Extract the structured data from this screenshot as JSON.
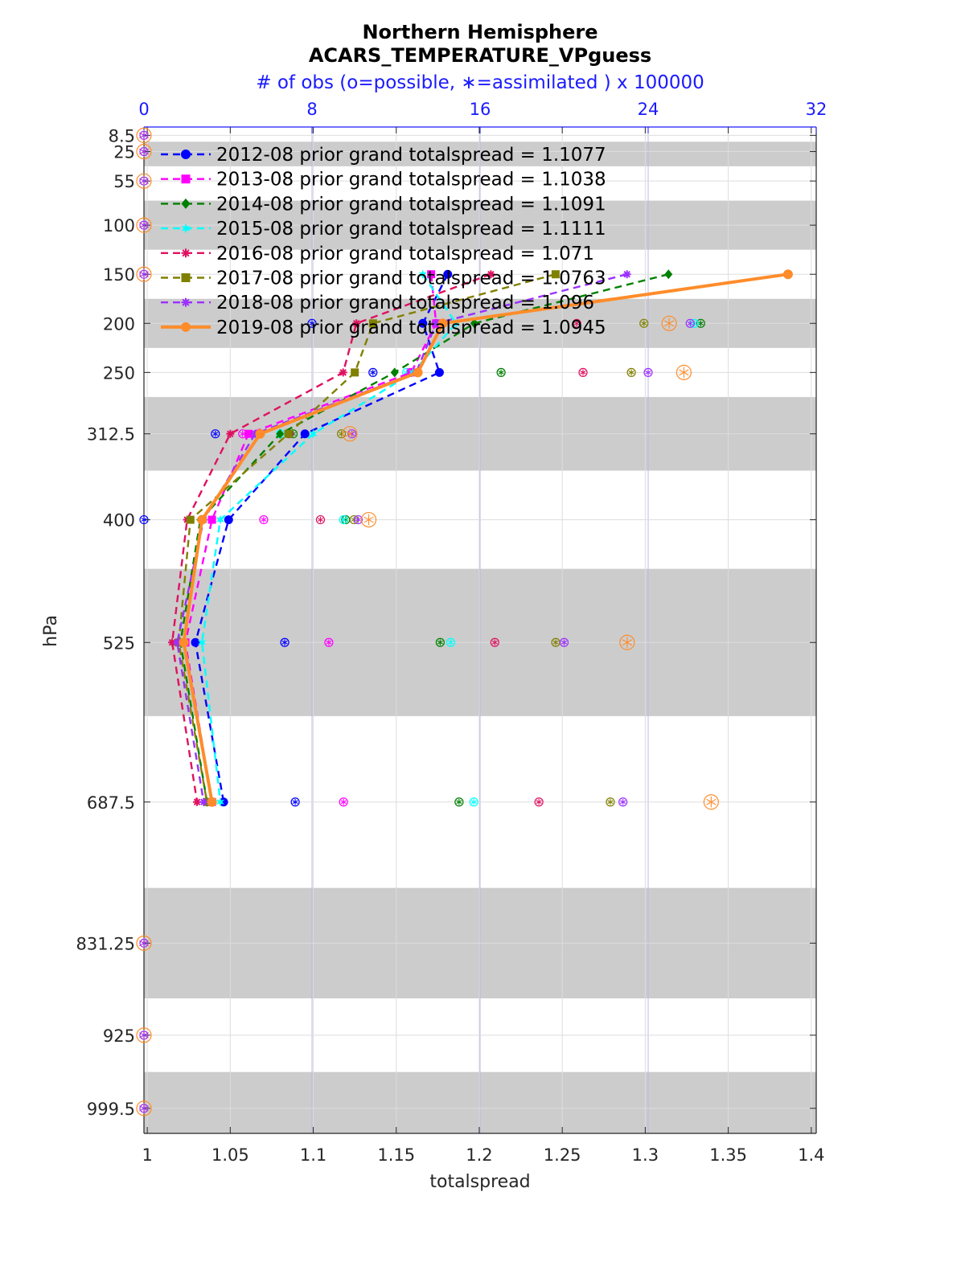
{
  "chart_data": {
    "type": "line",
    "title": "Northern Hemisphere",
    "subtitle": "ACARS_TEMPERATURE_VPguess",
    "top_axis_label": "# of obs (o=possible, ∗=assimilated ) x 100000",
    "xlabel": "totalspread",
    "ylabel": "hPa",
    "xlim": [
      0.998,
      1.403
    ],
    "x_ticks": [
      "1",
      "1.05",
      "1.1",
      "1.15",
      "1.2",
      "1.25",
      "1.3",
      "1.35",
      "1.4"
    ],
    "x_tick_values": [
      1.0,
      1.05,
      1.1,
      1.15,
      1.2,
      1.25,
      1.3,
      1.35,
      1.4
    ],
    "top_xlim": [
      0,
      32
    ],
    "top_ticks": [
      "0",
      "8",
      "16",
      "24",
      "32"
    ],
    "top_tick_values": [
      0,
      8,
      16,
      24,
      32
    ],
    "pressure_levels": [
      "8.5",
      "25",
      "55",
      "100",
      "150",
      "200",
      "250",
      "312.5",
      "400",
      "525",
      "687.5",
      "831.25",
      "925",
      "999.5"
    ],
    "pressure_values": [
      8.5,
      25,
      55,
      100,
      150,
      200,
      250,
      312.5,
      400,
      525,
      687.5,
      831.25,
      925,
      999.5
    ],
    "ylim": [
      0,
      1025
    ],
    "shaded_bands": [
      [
        15,
        40
      ],
      [
        75,
        125
      ],
      [
        175,
        225
      ],
      [
        275,
        350
      ],
      [
        450,
        600
      ],
      [
        775,
        887.5
      ],
      [
        962.5,
        1025
      ]
    ],
    "grid": true,
    "legend_position": "top-left",
    "series": [
      {
        "name": "2012-08 prior grand totalspread = 1.1077",
        "color": "#0000ff",
        "marker": "circle",
        "linestyle": "dashed",
        "levels": [
          150,
          200,
          250,
          312.5,
          400,
          525,
          687.5
        ],
        "values": [
          1.181,
          1.166,
          1.176,
          1.095,
          1.049,
          1.029,
          1.046
        ],
        "obs_levels": [
          200,
          250,
          312.5,
          400,
          525,
          687.5
        ],
        "obs_possible": [
          8.0,
          10.9,
          3.4,
          0,
          6.7,
          7.2
        ],
        "obs_assimilated": [
          8.0,
          10.9,
          3.4,
          0,
          6.7,
          7.2
        ]
      },
      {
        "name": "2013-08 prior grand totalspread = 1.1038",
        "color": "#ff00ff",
        "marker": "square",
        "linestyle": "dashed",
        "levels": [
          150,
          200,
          250,
          312.5,
          400,
          525,
          687.5
        ],
        "values": [
          1.171,
          1.174,
          1.159,
          1.061,
          1.039,
          1.023,
          1.039
        ],
        "obs_levels": [
          200,
          250,
          312.5,
          400,
          525,
          687.5
        ],
        "obs_possible": [
          13.9,
          12.7,
          4.7,
          5.7,
          8.8,
          9.5
        ],
        "obs_assimilated": [
          13.9,
          12.7,
          4.7,
          5.7,
          8.8,
          9.5
        ]
      },
      {
        "name": "2014-08 prior grand totalspread = 1.1091",
        "color": "#008000",
        "marker": "diamond",
        "linestyle": "dashed",
        "levels": [
          150,
          200,
          250,
          312.5,
          400,
          525,
          687.5
        ],
        "values": [
          1.314,
          1.197,
          1.149,
          1.08,
          1.032,
          1.02,
          1.036
        ],
        "obs_levels": [
          200,
          250,
          312.5,
          400,
          525,
          687.5
        ],
        "obs_possible": [
          26.5,
          17.0,
          7.1,
          9.6,
          14.1,
          15.0
        ],
        "obs_assimilated": [
          26.5,
          17.0,
          7.1,
          9.6,
          14.1,
          15.0
        ]
      },
      {
        "name": "2015-08 prior grand totalspread = 1.1111",
        "color": "#00ffff",
        "marker": "hexagram",
        "linestyle": "dashed",
        "levels": [
          150,
          200,
          250,
          312.5,
          400,
          525,
          687.5
        ],
        "values": [
          1.166,
          1.186,
          1.16,
          1.1,
          1.044,
          1.033,
          1.044
        ],
        "obs_levels": [
          200,
          250,
          312.5,
          400,
          525,
          687.5
        ],
        "obs_possible": [
          26.2,
          12.5,
          6.5,
          9.5,
          14.6,
          15.7
        ],
        "obs_assimilated": [
          26.2,
          12.5,
          6.5,
          9.5,
          14.6,
          15.7
        ]
      },
      {
        "name": "2016-08 prior grand totalspread = 1.071",
        "color": "#e0115f",
        "marker": "asterisk",
        "linestyle": "dashed",
        "levels": [
          150,
          200,
          250,
          312.5,
          400,
          525,
          687.5
        ],
        "values": [
          1.207,
          1.126,
          1.118,
          1.05,
          1.024,
          1.015,
          1.03
        ],
        "obs_levels": [
          200,
          250,
          312.5,
          400,
          525,
          687.5
        ],
        "obs_possible": [
          20.6,
          20.9,
          6.9,
          8.4,
          16.7,
          18.8
        ],
        "obs_assimilated": [
          20.6,
          20.9,
          6.9,
          8.4,
          16.7,
          18.8
        ]
      },
      {
        "name": "2017-08 prior grand totalspread = 1.0763",
        "color": "#808000",
        "marker": "square",
        "linestyle": "dashed",
        "levels": [
          150,
          200,
          250,
          312.5,
          400,
          525,
          687.5
        ],
        "values": [
          1.246,
          1.136,
          1.125,
          1.085,
          1.026,
          1.019,
          1.036
        ],
        "obs_levels": [
          200,
          250,
          312.5,
          400,
          525,
          687.5
        ],
        "obs_possible": [
          23.8,
          23.2,
          9.4,
          10.0,
          19.6,
          22.2
        ],
        "obs_assimilated": [
          23.8,
          23.2,
          9.4,
          10.0,
          19.6,
          22.2
        ]
      },
      {
        "name": "2018-08 prior grand totalspread = 1.096",
        "color": "#9b30ff",
        "marker": "asterisk",
        "linestyle": "dashed",
        "levels": [
          150,
          200,
          250,
          312.5,
          400,
          525,
          687.5
        ],
        "values": [
          1.289,
          1.174,
          1.162,
          1.065,
          1.034,
          1.018,
          1.034
        ],
        "obs_levels": [
          200,
          250,
          312.5,
          400,
          525,
          687.5
        ],
        "obs_possible": [
          26.0,
          24.0,
          9.9,
          10.2,
          20.0,
          22.8
        ],
        "obs_assimilated": [
          26.0,
          24.0,
          9.9,
          10.2,
          20.0,
          22.8
        ]
      },
      {
        "name": "2019-08 prior grand totalspread = 1.0945",
        "color": "#ff8c2a",
        "marker": "circle",
        "linestyle": "solid",
        "levels": [
          150,
          200,
          250,
          312.5,
          400,
          525,
          687.5
        ],
        "values": [
          1.386,
          1.178,
          1.163,
          1.068,
          1.033,
          1.022,
          1.039
        ],
        "obs_levels": [
          200,
          250,
          312.5,
          400,
          525,
          687.5
        ],
        "obs_possible": [
          25.0,
          25.7,
          9.8,
          10.7,
          23.0,
          27.0
        ],
        "obs_assimilated": [
          25.0,
          25.7,
          9.8,
          10.7,
          23.0,
          27.0
        ]
      }
    ],
    "empty_levels": [
      8.5,
      25,
      55,
      100,
      150,
      831.25,
      925,
      999.5
    ]
  }
}
